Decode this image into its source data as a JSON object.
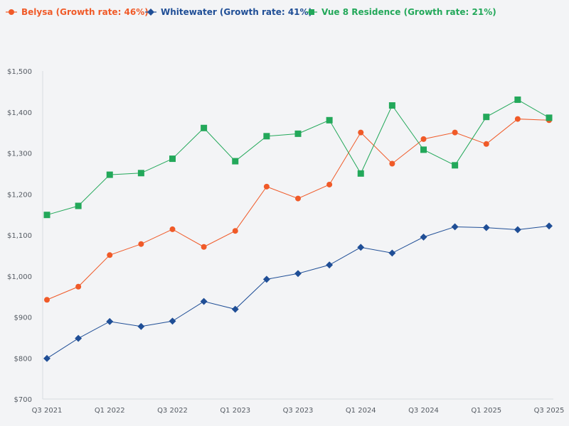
{
  "chart_data": {
    "type": "line",
    "categories": [
      "Q3 2021",
      "Q4 2021",
      "Q1 2022",
      "Q2 2022",
      "Q3 2022",
      "Q4 2022",
      "Q1 2023",
      "Q2 2023",
      "Q3 2023",
      "Q4 2023",
      "Q1 2024",
      "Q2 2024",
      "Q3 2024",
      "Q4 2024",
      "Q1 2025",
      "Q2 2025",
      "Q3 2025"
    ],
    "x_tick_labels": [
      "Q3 2021",
      "Q1 2022",
      "Q3 2022",
      "Q1 2023",
      "Q3 2023",
      "Q1 2024",
      "Q3 2024",
      "Q1 2025",
      "Q3 2025"
    ],
    "y_ticks": [
      700,
      800,
      900,
      1000,
      1100,
      1200,
      1300,
      1400,
      1500
    ],
    "y_tick_labels": [
      "$700",
      "$800",
      "$900",
      "$1,000",
      "$1,100",
      "$1,200",
      "$1,300",
      "$1,400",
      "$1,500"
    ],
    "ylim": [
      700,
      1500
    ],
    "legend_position": "top-left",
    "series": [
      {
        "name": "Belysa (Growth rate: 46%)",
        "color": "#f05a28",
        "marker": "circle",
        "values": [
          942,
          974,
          1051,
          1078,
          1114,
          1071,
          1110,
          1218,
          1189,
          1223,
          1350,
          1274,
          1334,
          1350,
          1322,
          1383,
          1380
        ]
      },
      {
        "name": "Whitewater (Growth rate: 41%)",
        "color": "#1f4e96",
        "marker": "diamond",
        "values": [
          799,
          848,
          889,
          877,
          890,
          938,
          919,
          992,
          1006,
          1027,
          1070,
          1056,
          1095,
          1120,
          1118,
          1113,
          1122
        ]
      },
      {
        "name": "Vue 8 Residence (Growth rate: 21%)",
        "color": "#23a85a",
        "marker": "square",
        "values": [
          1149,
          1171,
          1247,
          1251,
          1286,
          1361,
          1280,
          1341,
          1347,
          1380,
          1250,
          1416,
          1308,
          1270,
          1388,
          1430,
          1386
        ]
      }
    ]
  }
}
